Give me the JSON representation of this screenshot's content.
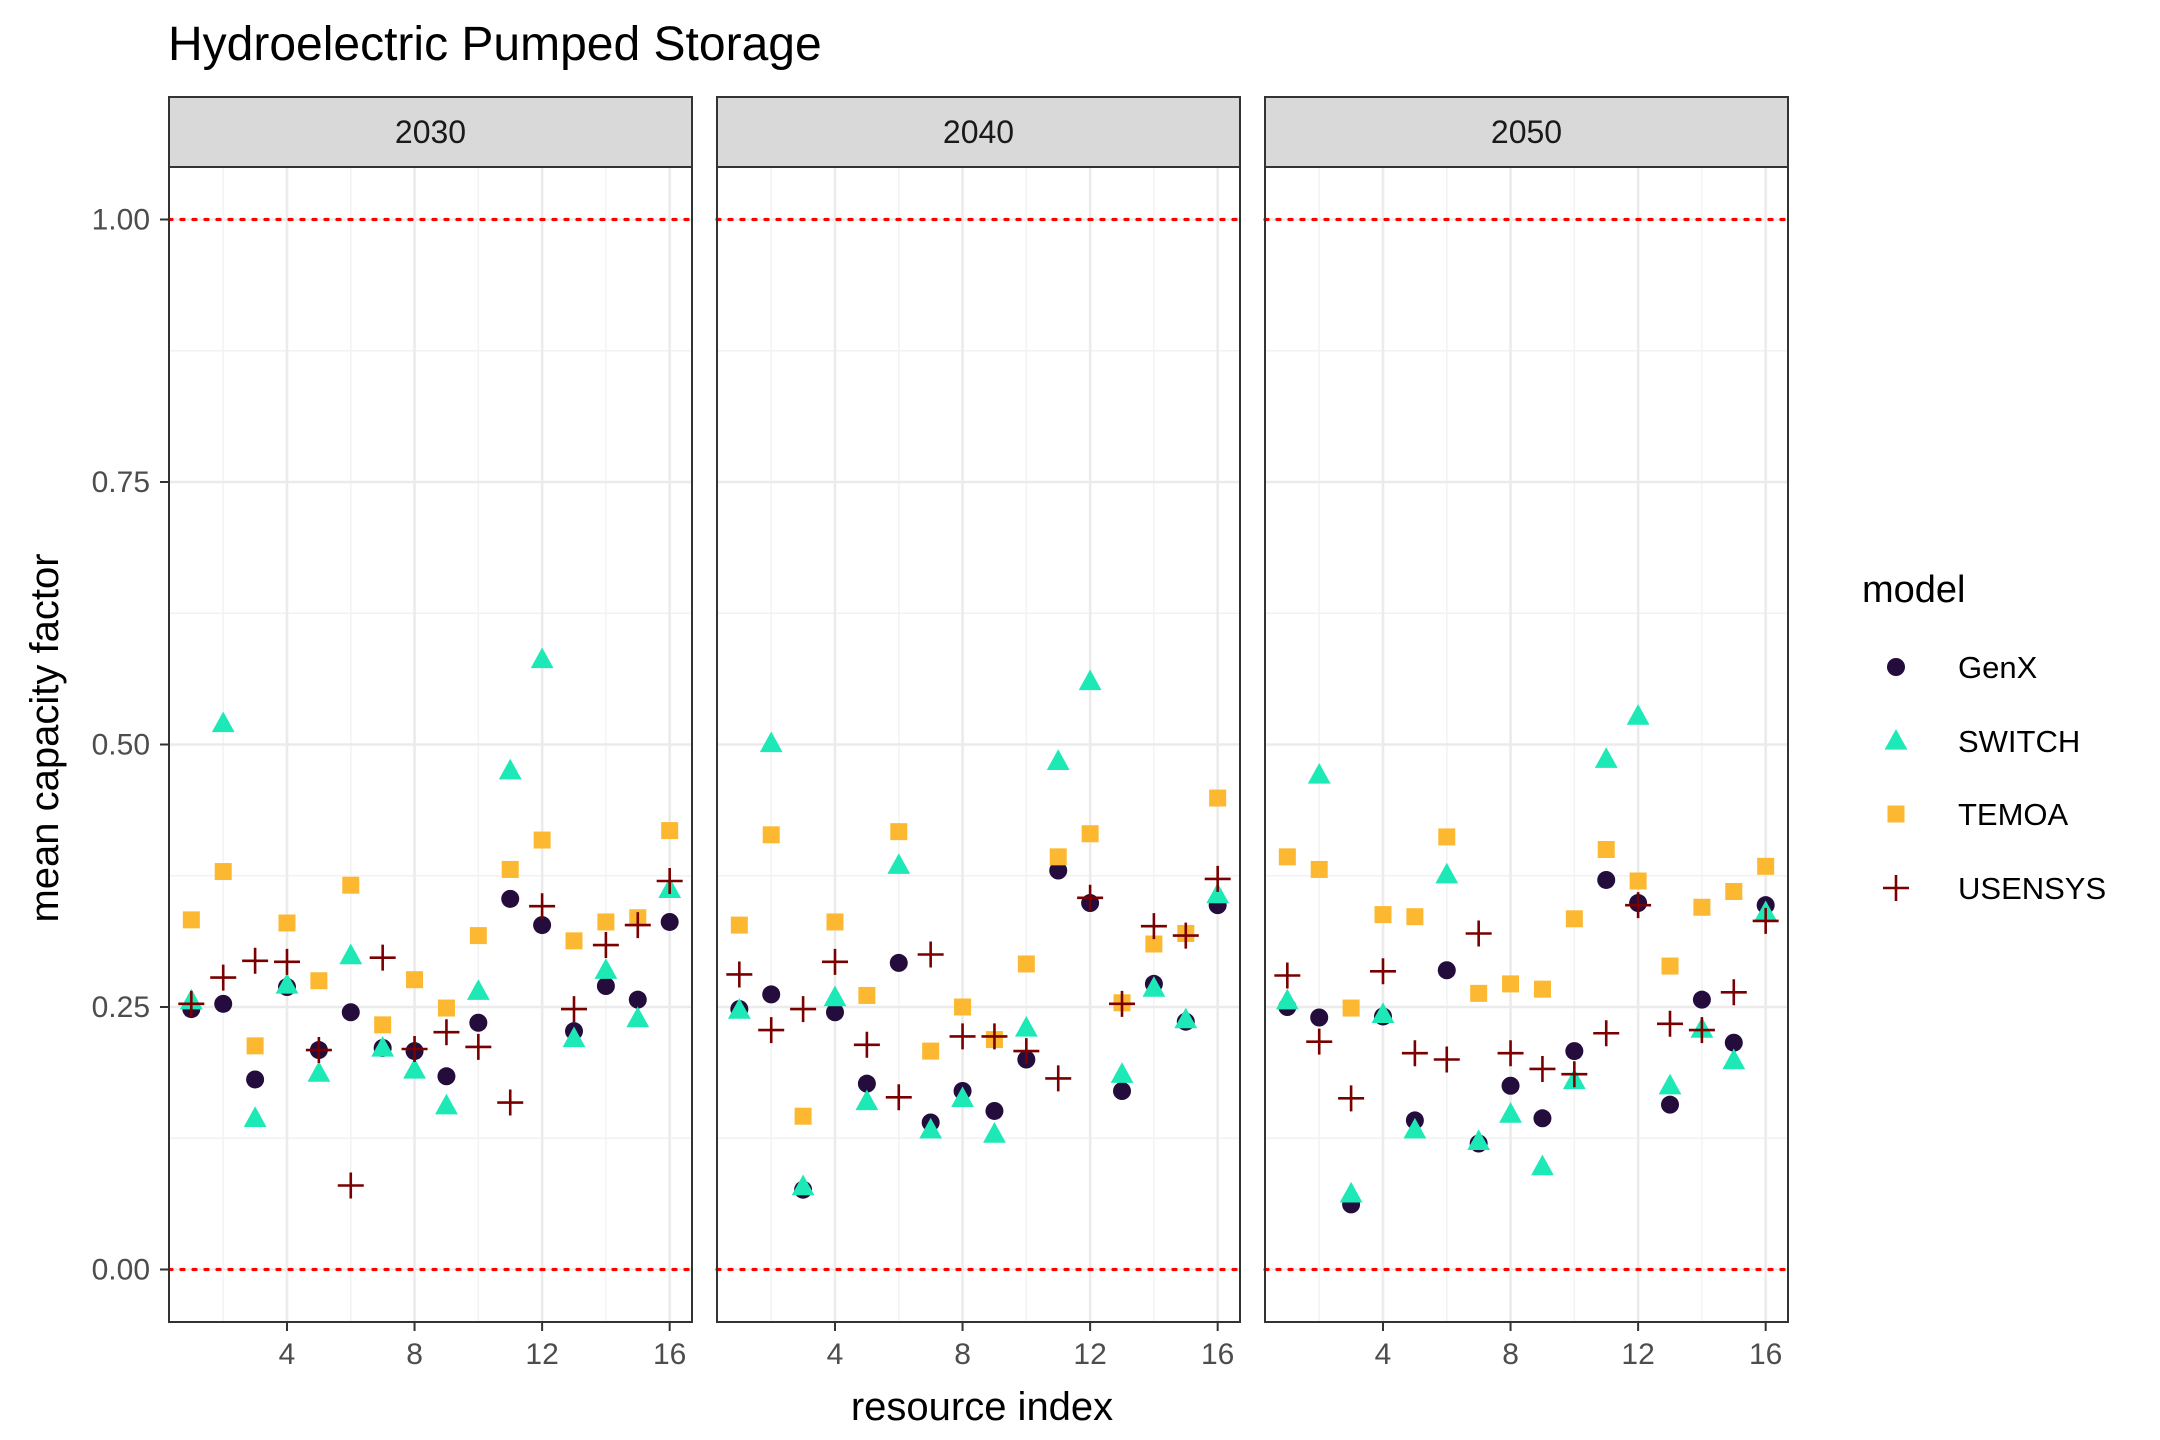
{
  "chart_data": {
    "type": "scatter",
    "title": "Hydroelectric Pumped Storage",
    "xlabel": "resource index",
    "ylabel": "mean capacity factor",
    "xlim": [
      0.3,
      16.7
    ],
    "ylim": [
      -0.05,
      1.05
    ],
    "x_ticks": [
      4,
      8,
      12,
      16
    ],
    "y_ticks": [
      0,
      0.25,
      0.5,
      0.75,
      1
    ],
    "y_tick_labels": [
      "0.00",
      "0.25",
      "0.50",
      "0.75",
      "1.00"
    ],
    "reference_lines": [
      0,
      1
    ],
    "reference_line_color": "#ff0000",
    "grid": true,
    "legend": {
      "title": "model",
      "position": "right"
    },
    "facets": [
      {
        "label": "2030",
        "series": [
          {
            "name": "GenX",
            "shape": "circle",
            "color": "#240c3c",
            "x": [
              1,
              2,
              3,
              4,
              5,
              6,
              7,
              8,
              9,
              10,
              11,
              12,
              13,
              14,
              15,
              16
            ],
            "y": [
              0.248,
              0.253,
              0.181,
              0.269,
              0.209,
              0.245,
              0.211,
              0.208,
              0.184,
              0.235,
              0.353,
              0.328,
              0.227,
              0.27,
              0.257,
              0.331
            ]
          },
          {
            "name": "SWITCH",
            "shape": "triangle",
            "color": "#1de9b6",
            "x": [
              1,
              2,
              3,
              4,
              5,
              6,
              7,
              8,
              9,
              10,
              11,
              12,
              13,
              14,
              15,
              16
            ],
            "y": [
              0.256,
              0.52,
              0.144,
              0.271,
              0.187,
              0.299,
              0.211,
              0.19,
              0.156,
              0.265,
              0.475,
              0.581,
              0.22,
              0.285,
              0.239,
              0.362
            ]
          },
          {
            "name": "TEMOA",
            "shape": "square",
            "color": "#fbb830",
            "x": [
              1,
              2,
              3,
              4,
              5,
              6,
              7,
              8,
              9,
              10,
              11,
              12,
              13,
              14,
              15,
              16
            ],
            "y": [
              0.333,
              0.379,
              0.213,
              0.33,
              0.275,
              0.366,
              0.233,
              0.276,
              0.249,
              0.318,
              0.381,
              0.409,
              0.313,
              0.331,
              0.335,
              0.418
            ]
          },
          {
            "name": "USENSYS",
            "shape": "plus",
            "color": "#7a0000",
            "x": [
              1,
              2,
              3,
              4,
              5,
              6,
              7,
              8,
              9,
              10,
              11,
              12,
              13,
              14,
              15,
              16
            ],
            "y": [
              0.253,
              0.278,
              0.294,
              0.293,
              0.209,
              0.08,
              0.297,
              0.21,
              0.226,
              0.212,
              0.159,
              0.346,
              0.248,
              0.309,
              0.328,
              0.37
            ]
          }
        ]
      },
      {
        "label": "2040",
        "series": [
          {
            "name": "GenX",
            "shape": "circle",
            "color": "#240c3c",
            "x": [
              1,
              2,
              3,
              4,
              5,
              6,
              7,
              8,
              9,
              10,
              11,
              12,
              13,
              14,
              15,
              16
            ],
            "y": [
              0.248,
              0.262,
              0.076,
              0.245,
              0.177,
              0.292,
              0.14,
              0.17,
              0.151,
              0.2,
              0.38,
              0.349,
              0.17,
              0.272,
              0.236,
              0.347
            ]
          },
          {
            "name": "SWITCH",
            "shape": "triangle",
            "color": "#1de9b6",
            "x": [
              1,
              2,
              3,
              4,
              5,
              6,
              7,
              8,
              9,
              10,
              11,
              12,
              13,
              14,
              15,
              16
            ],
            "y": [
              0.247,
              0.501,
              0.079,
              0.259,
              0.16,
              0.385,
              0.133,
              0.163,
              0.129,
              0.23,
              0.484,
              0.56,
              0.186,
              0.268,
              0.238,
              0.357
            ]
          },
          {
            "name": "TEMOA",
            "shape": "square",
            "color": "#fbb830",
            "x": [
              1,
              2,
              3,
              4,
              5,
              6,
              7,
              8,
              9,
              10,
              11,
              12,
              13,
              14,
              15,
              16
            ],
            "y": [
              0.328,
              0.414,
              0.146,
              0.331,
              0.261,
              0.417,
              0.208,
              0.25,
              0.219,
              0.291,
              0.393,
              0.415,
              0.254,
              0.31,
              0.32,
              0.449
            ]
          },
          {
            "name": "USENSYS",
            "shape": "plus",
            "color": "#7a0000",
            "x": [
              1,
              2,
              3,
              4,
              5,
              6,
              7,
              8,
              9,
              10,
              11,
              12,
              13,
              14,
              15,
              16
            ],
            "y": [
              0.281,
              0.228,
              0.248,
              0.293,
              0.214,
              0.164,
              0.3,
              0.222,
              0.222,
              0.208,
              0.182,
              0.354,
              0.253,
              0.327,
              0.318,
              0.372
            ]
          }
        ]
      },
      {
        "label": "2050",
        "series": [
          {
            "name": "GenX",
            "shape": "circle",
            "color": "#240c3c",
            "x": [
              1,
              2,
              3,
              4,
              5,
              6,
              7,
              8,
              9,
              10,
              11,
              12,
              13,
              14,
              15,
              16
            ],
            "y": [
              0.25,
              0.24,
              0.062,
              0.241,
              0.142,
              0.285,
              0.12,
              0.175,
              0.144,
              0.208,
              0.371,
              0.349,
              0.157,
              0.257,
              0.216,
              0.347
            ]
          },
          {
            "name": "SWITCH",
            "shape": "triangle",
            "color": "#1de9b6",
            "x": [
              1,
              2,
              3,
              4,
              5,
              6,
              7,
              8,
              9,
              10,
              11,
              12,
              13,
              14,
              15,
              16
            ],
            "y": [
              0.256,
              0.471,
              0.072,
              0.243,
              0.133,
              0.376,
              0.122,
              0.148,
              0.098,
              0.18,
              0.486,
              0.527,
              0.175,
              0.229,
              0.199,
              0.34
            ]
          },
          {
            "name": "TEMOA",
            "shape": "square",
            "color": "#fbb830",
            "x": [
              1,
              2,
              3,
              4,
              5,
              6,
              7,
              8,
              9,
              10,
              11,
              12,
              13,
              14,
              15,
              16
            ],
            "y": [
              0.393,
              0.381,
              0.249,
              0.338,
              0.336,
              0.412,
              0.263,
              0.272,
              0.267,
              0.334,
              0.4,
              0.37,
              0.289,
              0.345,
              0.36,
              0.384
            ]
          },
          {
            "name": "USENSYS",
            "shape": "plus",
            "color": "#7a0000",
            "x": [
              1,
              2,
              3,
              4,
              5,
              6,
              7,
              8,
              9,
              10,
              11,
              12,
              13,
              14,
              15,
              16
            ],
            "y": [
              0.28,
              0.217,
              0.163,
              0.284,
              0.206,
              0.2,
              0.32,
              0.206,
              0.191,
              0.186,
              0.225,
              0.347,
              0.234,
              0.228,
              0.264,
              0.332
            ]
          }
        ]
      }
    ]
  }
}
